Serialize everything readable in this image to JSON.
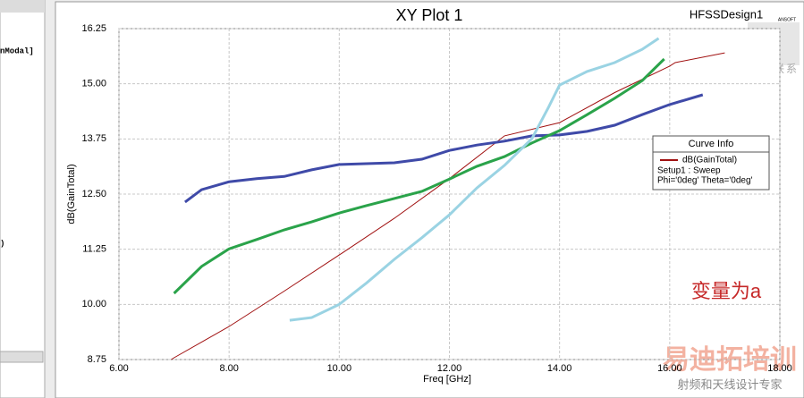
{
  "chart_data": {
    "type": "line",
    "title": "XY Plot 1",
    "subtitle": "HFSSDesign1",
    "x_label": "Freq [GHz]",
    "y_label": "dB(GainTotal)",
    "xlim": [
      6,
      18
    ],
    "ylim": [
      8.75,
      16.25
    ],
    "xticks": [
      {
        "value": 6,
        "label": "6.00"
      },
      {
        "value": 8,
        "label": "8.00"
      },
      {
        "value": 10,
        "label": "10.00"
      },
      {
        "value": 12,
        "label": "12.00"
      },
      {
        "value": 14,
        "label": "14.00"
      },
      {
        "value": 16,
        "label": "16.00"
      },
      {
        "value": 18,
        "label": "18.00"
      }
    ],
    "yticks": [
      8.75,
      {
        "value": 10,
        "label": "10.00"
      },
      11.25,
      {
        "value": 12.5,
        "label": "12.50"
      },
      13.75,
      {
        "value": 15,
        "label": "15.00"
      },
      16.25
    ],
    "grid": true,
    "legend_position": "right",
    "legend_title": "Curve Info",
    "legend_notes": [
      "Setup1 : Sweep",
      "Phi='0deg' Theta='0deg'"
    ],
    "annotation": "变量为a",
    "series": [
      {
        "name": "dB(GainTotal)",
        "color": "#a01010",
        "x": [
          6.95,
          7,
          8,
          9,
          10,
          11,
          12,
          13,
          14,
          15,
          16,
          16.1,
          17.0
        ],
        "values": [
          8.75,
          8.79,
          9.5,
          10.3,
          11.12,
          11.95,
          12.85,
          13.82,
          14.12,
          14.8,
          15.4,
          15.48,
          15.7
        ]
      },
      {
        "color": "#3f4aa8",
        "x": [
          7.2,
          7.5,
          8,
          8.5,
          9,
          9.5,
          10,
          11,
          11.5,
          12,
          12.5,
          13,
          13.5,
          14,
          14.5,
          15,
          15.5,
          16,
          16.6
        ],
        "values": [
          12.32,
          12.6,
          12.78,
          12.85,
          12.9,
          13.05,
          13.17,
          13.21,
          13.29,
          13.49,
          13.61,
          13.7,
          13.82,
          13.84,
          13.92,
          14.06,
          14.3,
          14.53,
          14.75
        ]
      },
      {
        "color": "#2aa34a",
        "x": [
          7,
          7.5,
          8,
          8.5,
          9,
          9.5,
          10,
          10.5,
          11,
          11.5,
          12,
          12.5,
          13,
          13.5,
          14,
          14.5,
          15,
          15.5,
          15.9
        ],
        "values": [
          10.25,
          10.86,
          11.26,
          11.47,
          11.69,
          11.87,
          12.07,
          12.24,
          12.4,
          12.56,
          12.84,
          13.13,
          13.35,
          13.66,
          13.94,
          14.3,
          14.67,
          15.07,
          15.56
        ]
      },
      {
        "color": "#9ad3e3",
        "x": [
          9.1,
          9.5,
          10,
          10.5,
          11,
          11.5,
          12,
          12.5,
          13,
          13.5,
          13.8,
          14,
          14.5,
          15,
          15.5,
          15.8
        ],
        "values": [
          9.64,
          9.7,
          10.0,
          10.49,
          11.02,
          11.51,
          12.03,
          12.64,
          13.15,
          13.76,
          14.47,
          14.97,
          15.28,
          15.48,
          15.78,
          16.03
        ]
      }
    ]
  },
  "window": {
    "left_panel_text": [
      "nModal]",
      ")"
    ],
    "logo": "ANSOFT",
    "wechat": "微信联系",
    "watermark": "易迪拓培训",
    "watermark_sub": "射频和天线设计专家"
  }
}
